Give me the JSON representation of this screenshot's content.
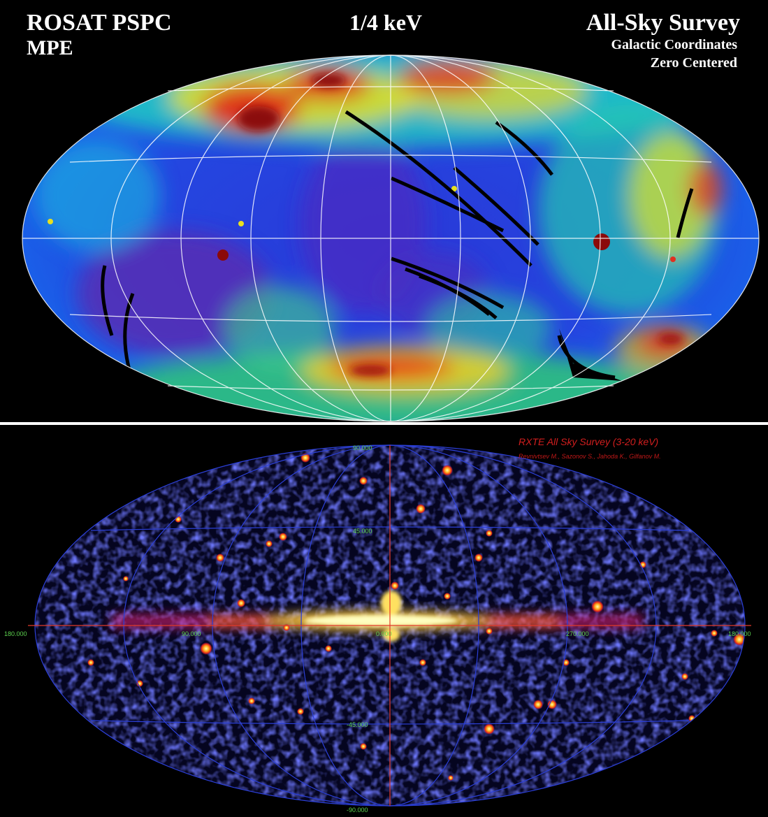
{
  "rosat": {
    "title_left_1": "ROSAT PSPC",
    "title_left_2": "MPE",
    "title_center": "1/4 keV",
    "title_right_1": "All-Sky Survey",
    "title_right_2": "Galactic Coordinates",
    "title_right_3": "Zero Centered"
  },
  "rxte": {
    "title": "RXTE All Sky Survey (3-20 keV)",
    "authors": "Revnivtsev M., Sazonov S., Jahoda K., Gilfanov M.",
    "ticks": {
      "lat_90": "90.000",
      "lat_45": "45.000",
      "lon_180_left": "180.000",
      "lon_90": "90.000",
      "lon_0": "0.000",
      "lon_270": "270.000",
      "lon_180_right": "180.000",
      "lat_m45": "-45.000",
      "lat_m90": "-90.000"
    }
  },
  "colors": {
    "grid_top": "#ffffff",
    "grid_bottom": "#2b3fd6",
    "axis_bottom": "#e23a2a",
    "tick_text": "#5dd24f"
  }
}
